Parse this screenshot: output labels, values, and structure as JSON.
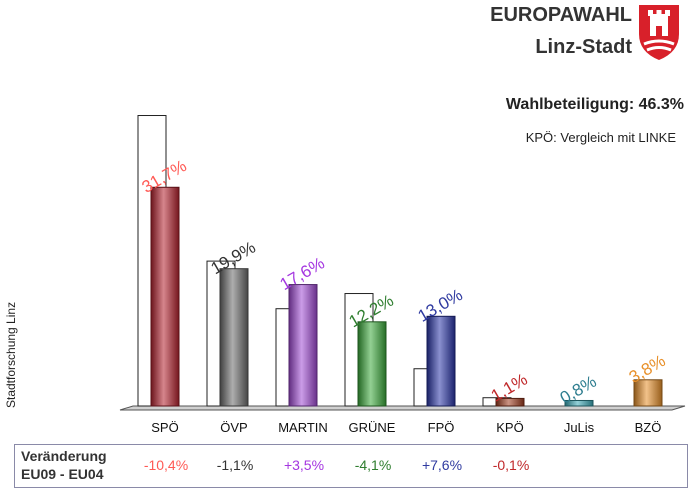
{
  "header": {
    "title_line1": "EUROPAWAHL",
    "title_line2": "Linz-Stadt",
    "turnout": "Wahlbeteiligung: 46.3%",
    "note": "KPÖ: Vergleich mit LINKE",
    "logo": "linz-coat-of-arms"
  },
  "source_text": "Stadtforschung Linz",
  "change_row": {
    "label_line1": "Veränderung",
    "label_line2": "EU09 - EU04"
  },
  "chart_data": {
    "type": "bar",
    "categories": [
      "SPÖ",
      "ÖVP",
      "MARTIN",
      "GRÜNE",
      "FPÖ",
      "KPÖ",
      "JuLis",
      "BZÖ"
    ],
    "series": [
      {
        "values": [
          31.7,
          19.9,
          17.6,
          12.2,
          13.0,
          1.1,
          0.8,
          3.8
        ],
        "labels": [
          "31,7%",
          "19,9%",
          "17,6%",
          "12,2%",
          "13,0%",
          "1,1%",
          "0,8%",
          "3,8%"
        ]
      },
      {
        "values": [
          42.1,
          21.0,
          14.1,
          16.3,
          5.4,
          1.2,
          null,
          null
        ]
      }
    ],
    "changes": [
      "-10,4%",
      "-1,1%",
      "+3,5%",
      "-4,1%",
      "+7,6%",
      "-0,1%",
      "",
      ""
    ],
    "colors": [
      "#b4222e",
      "#6b6b6b",
      "#a14bd6",
      "#3aaa3a",
      "#2a35a8",
      "#9e3a1e",
      "#3aaab8",
      "#e8902a"
    ],
    "label_colors": [
      "#ff5a55",
      "#333333",
      "#a436e0",
      "#2f7e2f",
      "#2f3aa0",
      "#c0282a",
      "#2f7e90",
      "#e8902a"
    ],
    "ylim": [
      0,
      45
    ],
    "grid": false
  }
}
